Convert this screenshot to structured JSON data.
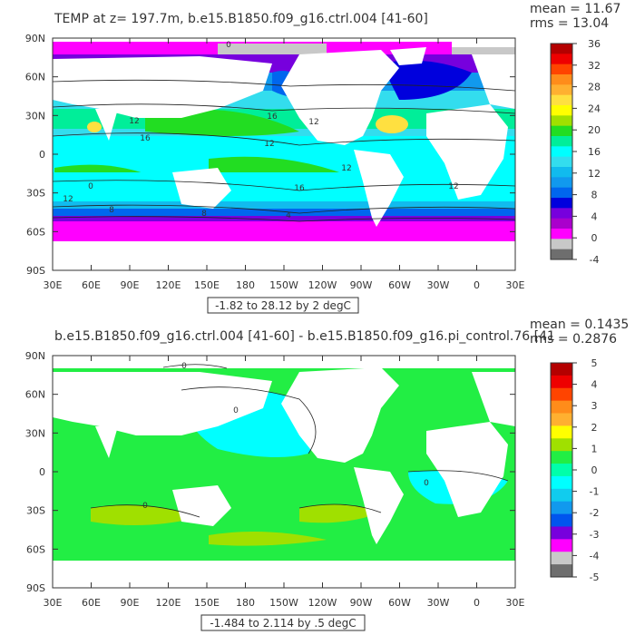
{
  "panels": [
    {
      "title": "TEMP at z= 197.7m, b.e15.B1850.f09_g16.ctrl.004 [41-60]",
      "stats": {
        "mean": "mean = 11.67",
        "rms": "rms = 13.04"
      },
      "range_label": "-1.82 to 28.12 by 2 degC",
      "lat_labels": [
        "90N",
        "60N",
        "30N",
        "0",
        "30S",
        "60S",
        "90S"
      ],
      "lon_labels": [
        "30E",
        "60E",
        "90E",
        "120E",
        "150E",
        "180",
        "150W",
        "120W",
        "90W",
        "60W",
        "30W",
        "0",
        "30E"
      ],
      "colorbar": {
        "labels": [
          "36",
          "32",
          "28",
          "24",
          "20",
          "16",
          "12",
          "8",
          "4",
          "0",
          "-4"
        ],
        "colors": [
          "#b40000",
          "#ee0000",
          "#ff4400",
          "#ff8c1a",
          "#ffb030",
          "#ffe040",
          "#ffff00",
          "#a0e000",
          "#22dd22",
          "#00ee99",
          "#00ffff",
          "#33ddee",
          "#11bbee",
          "#1199ee",
          "#0066ee",
          "#0000dd",
          "#7700dd",
          "#aa00cc",
          "#ff00ff",
          "#c8c8c8",
          "#6e6e6e"
        ]
      },
      "contour_labels": [
        "0",
        "16",
        "16",
        "12",
        "12",
        "12",
        "12",
        "16",
        "12",
        "8",
        "8",
        "4",
        "0",
        "12"
      ]
    },
    {
      "title": "b.e15.B1850.f09_g16.ctrl.004 [41-60] - b.e15.B1850.f09_g16.pi_control.76 [41",
      "stats": {
        "mean": "mean = 0.1435",
        "rms": "rms = 0.2876"
      },
      "range_label": "-1.484 to 2.114 by .5 degC",
      "lat_labels": [
        "90N",
        "60N",
        "30N",
        "0",
        "30S",
        "60S",
        "90S"
      ],
      "lon_labels": [
        "30E",
        "60E",
        "90E",
        "120E",
        "150E",
        "180",
        "150W",
        "120W",
        "90W",
        "60W",
        "30W",
        "0",
        "30E"
      ],
      "colorbar": {
        "labels": [
          "5",
          "4",
          "3",
          "2",
          "1",
          "0",
          "-1",
          "-2",
          "-3",
          "-4",
          "-5"
        ],
        "colors": [
          "#b40000",
          "#ee0000",
          "#ff4400",
          "#ff8c1a",
          "#ffb030",
          "#ffff00",
          "#a0e000",
          "#22ee44",
          "#00ffaa",
          "#00ffff",
          "#11ccee",
          "#1199ee",
          "#0055ee",
          "#7700dd",
          "#ff00ff",
          "#c8c8c8",
          "#6e6e6e"
        ]
      },
      "contour_labels": [
        "0",
        "0",
        "0",
        "0"
      ]
    }
  ]
}
